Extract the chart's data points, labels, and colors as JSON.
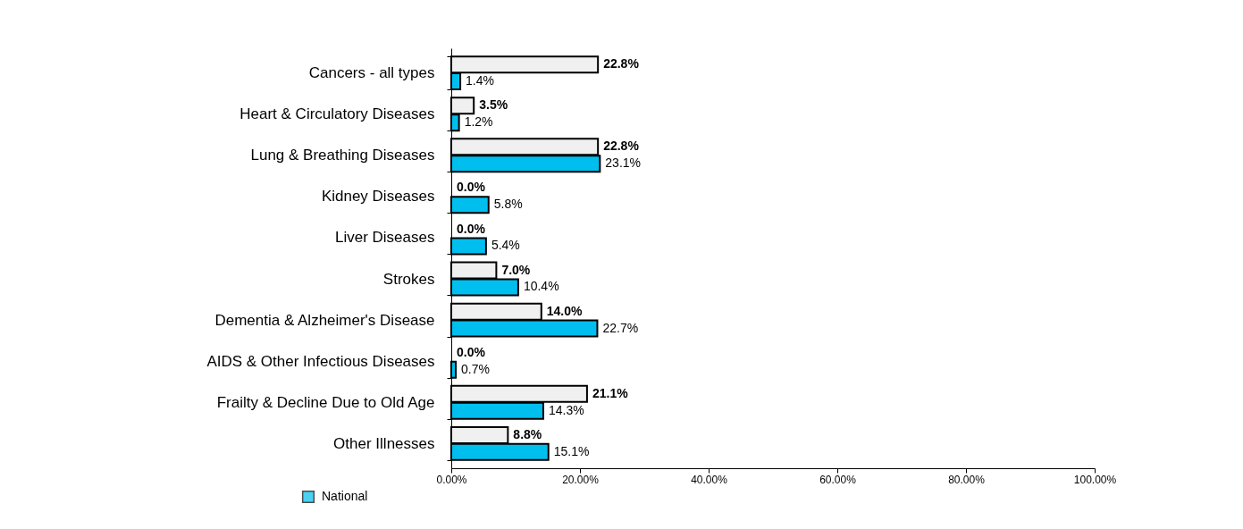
{
  "chart_data": {
    "type": "bar",
    "orientation": "horizontal",
    "categories": [
      "Cancers - all types",
      "Heart & Circulatory Diseases",
      "Lung & Breathing Diseases",
      "Kidney Diseases",
      "Liver Diseases",
      "Strokes",
      "Dementia & Alzheimer's Disease",
      "AIDS & Other Infectious Diseases",
      "Frailty & Decline Due to Old Age",
      "Other Illnesses"
    ],
    "series": [
      {
        "color": "#f0f0f0",
        "values": [
          22.8,
          3.5,
          22.8,
          0.0,
          0.0,
          7.0,
          14.0,
          0.0,
          21.1,
          8.8
        ],
        "value_labels": [
          "22.8%",
          "3.5%",
          "22.8%",
          "0.0%",
          "0.0%",
          "7.0%",
          "14.0%",
          "0.0%",
          "21.1%",
          "8.8%"
        ]
      },
      {
        "name": "National",
        "color": "#00bfef",
        "values": [
          1.4,
          1.2,
          23.1,
          5.8,
          5.4,
          10.4,
          22.7,
          0.7,
          14.3,
          15.1
        ],
        "value_labels": [
          "1.4%",
          "1.2%",
          "23.1%",
          "5.8%",
          "5.4%",
          "10.4%",
          "22.7%",
          "0.7%",
          "14.3%",
          "15.1%"
        ]
      }
    ],
    "xlim": [
      0,
      100
    ],
    "xticks": [
      {
        "value": 0,
        "label": "0.00%"
      },
      {
        "value": 20,
        "label": "20.00%"
      },
      {
        "value": 40,
        "label": "40.00%"
      },
      {
        "value": 60,
        "label": "60.00%"
      },
      {
        "value": 80,
        "label": "80.00%"
      },
      {
        "value": 100,
        "label": "100.00%"
      }
    ],
    "grid": false,
    "legend": "bottom left"
  }
}
